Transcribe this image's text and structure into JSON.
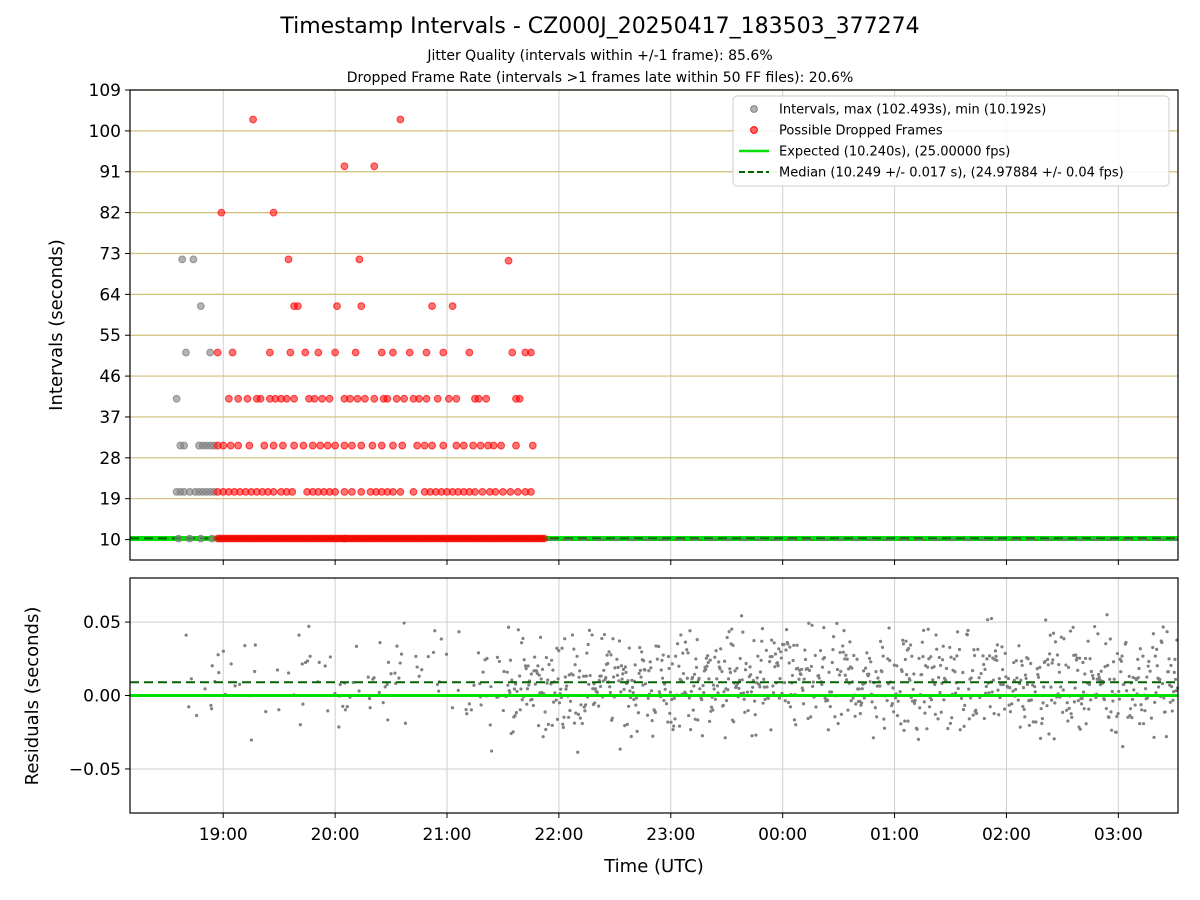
{
  "header": {
    "title": "Timestamp Intervals - CZ000J_20250417_183503_377274",
    "subtitle_jitter": "Jitter Quality (intervals within +/-1 frame): 85.6%",
    "subtitle_dropped": "Dropped Frame Rate (intervals >1 frames late within 50 FF files): 20.6%"
  },
  "colors": {
    "interval_gray": "#808080",
    "dropped_red": "#ff0000",
    "expected_green": "#00e000",
    "median_darkgreen": "#006400",
    "hline_gold": "#d2be78",
    "grid": "#cfcfcf"
  },
  "chart_data": [
    {
      "type": "scatter",
      "title": "Timestamp Intervals - CZ000J_20250417_183503_377274",
      "xlabel": "",
      "ylabel": "Intervals (seconds)",
      "x_is_time_utc": true,
      "xlim": [
        "18:10",
        "03:32"
      ],
      "ylim": [
        5.5,
        109
      ],
      "yticks": [
        10,
        19,
        28,
        37,
        46,
        55,
        64,
        73,
        82,
        91,
        100,
        109
      ],
      "xticks": [
        "19:00",
        "20:00",
        "21:00",
        "22:00",
        "23:00",
        "00:00",
        "01:00",
        "02:00",
        "03:00"
      ],
      "grid": true,
      "legend_position": "top-right",
      "legend": [
        "Intervals, max (102.493s), min (10.192s)",
        "Possible Dropped Frames",
        "Expected (10.240s), (25.00000 fps)",
        "Median (10.249 +/- 0.017 s), (24.97884 +/- 0.04 fps)"
      ],
      "reference_lines": {
        "expected": 10.24,
        "median": 10.249
      },
      "series": [
        {
          "name": "Intervals, max (102.493s), min (10.192s)",
          "points": [
            [
              "18:35",
              20.5
            ],
            [
              "18:37",
              20.5
            ],
            [
              "18:39",
              20.5
            ],
            [
              "18:42",
              20.5
            ],
            [
              "18:45",
              20.5
            ],
            [
              "18:47",
              20.5
            ],
            [
              "18:49",
              20.5
            ],
            [
              "18:51",
              20.5
            ],
            [
              "18:53",
              20.5
            ],
            [
              "18:55",
              20.5
            ],
            [
              "18:37",
              30.7
            ],
            [
              "18:39",
              30.7
            ],
            [
              "18:47",
              30.7
            ],
            [
              "18:49",
              30.7
            ],
            [
              "18:51",
              30.7
            ],
            [
              "18:53",
              30.7
            ],
            [
              "18:55",
              30.7
            ],
            [
              "18:35",
              41.0
            ],
            [
              "18:40",
              51.2
            ],
            [
              "18:53",
              51.2
            ],
            [
              "18:48",
              61.4
            ],
            [
              "18:38",
              71.7
            ],
            [
              "18:44",
              71.7
            ],
            [
              "18:36",
              10.2
            ],
            [
              "18:42",
              10.2
            ],
            [
              "18:48",
              10.2
            ],
            [
              "18:54",
              10.2
            ],
            [
              "20:05",
              10.2
            ]
          ]
        },
        {
          "name": "Possible Dropped Frames",
          "points": [
            [
              "19:16",
              102.5
            ],
            [
              "20:35",
              102.5
            ],
            [
              "20:05",
              92.2
            ],
            [
              "20:21",
              92.2
            ],
            [
              "18:59",
              82.0
            ],
            [
              "19:27",
              82.0
            ],
            [
              "19:35",
              71.7
            ],
            [
              "20:13",
              71.7
            ],
            [
              "21:33",
              71.4
            ],
            [
              "19:38",
              61.4
            ],
            [
              "19:40",
              61.4
            ],
            [
              "20:01",
              61.4
            ],
            [
              "20:14",
              61.4
            ],
            [
              "20:52",
              61.4
            ],
            [
              "21:03",
              61.4
            ],
            [
              "18:57",
              51.2
            ],
            [
              "19:05",
              51.2
            ],
            [
              "19:25",
              51.2
            ],
            [
              "19:36",
              51.2
            ],
            [
              "19:44",
              51.2
            ],
            [
              "19:51",
              51.2
            ],
            [
              "20:00",
              51.2
            ],
            [
              "20:11",
              51.2
            ],
            [
              "20:25",
              51.2
            ],
            [
              "20:31",
              51.2
            ],
            [
              "20:40",
              51.2
            ],
            [
              "20:49",
              51.2
            ],
            [
              "20:58",
              51.2
            ],
            [
              "21:12",
              51.2
            ],
            [
              "21:35",
              51.2
            ],
            [
              "21:42",
              51.2
            ],
            [
              "21:45",
              51.2
            ],
            [
              "19:03",
              41.0
            ],
            [
              "19:08",
              41.0
            ],
            [
              "19:13",
              41.0
            ],
            [
              "19:18",
              41.0
            ],
            [
              "19:20",
              41.0
            ],
            [
              "19:25",
              41.0
            ],
            [
              "19:28",
              41.0
            ],
            [
              "19:31",
              41.0
            ],
            [
              "19:34",
              41.0
            ],
            [
              "19:38",
              41.0
            ],
            [
              "19:46",
              41.0
            ],
            [
              "19:49",
              41.0
            ],
            [
              "19:53",
              41.0
            ],
            [
              "19:57",
              41.0
            ],
            [
              "20:05",
              41.0
            ],
            [
              "20:08",
              41.0
            ],
            [
              "20:12",
              41.0
            ],
            [
              "20:16",
              41.0
            ],
            [
              "20:21",
              41.0
            ],
            [
              "20:26",
              41.0
            ],
            [
              "20:28",
              41.0
            ],
            [
              "20:33",
              41.0
            ],
            [
              "20:37",
              41.0
            ],
            [
              "20:42",
              41.0
            ],
            [
              "20:45",
              41.0
            ],
            [
              "20:49",
              41.0
            ],
            [
              "20:55",
              41.0
            ],
            [
              "21:01",
              41.0
            ],
            [
              "21:05",
              41.0
            ],
            [
              "21:15",
              41.0
            ],
            [
              "21:17",
              41.0
            ],
            [
              "21:21",
              41.0
            ],
            [
              "21:37",
              41.0
            ],
            [
              "21:39",
              41.0
            ],
            [
              "18:57",
              30.7
            ],
            [
              "19:00",
              30.7
            ],
            [
              "19:04",
              30.7
            ],
            [
              "19:08",
              30.7
            ],
            [
              "19:14",
              30.7
            ],
            [
              "19:22",
              30.7
            ],
            [
              "19:27",
              30.7
            ],
            [
              "19:32",
              30.7
            ],
            [
              "19:38",
              30.7
            ],
            [
              "19:43",
              30.7
            ],
            [
              "19:48",
              30.7
            ],
            [
              "19:52",
              30.7
            ],
            [
              "19:56",
              30.7
            ],
            [
              "20:00",
              30.7
            ],
            [
              "20:05",
              30.7
            ],
            [
              "20:09",
              30.7
            ],
            [
              "20:14",
              30.7
            ],
            [
              "20:20",
              30.7
            ],
            [
              "20:25",
              30.7
            ],
            [
              "20:31",
              30.7
            ],
            [
              "20:36",
              30.7
            ],
            [
              "20:44",
              30.7
            ],
            [
              "20:48",
              30.7
            ],
            [
              "20:52",
              30.7
            ],
            [
              "20:58",
              30.7
            ],
            [
              "21:05",
              30.7
            ],
            [
              "21:09",
              30.7
            ],
            [
              "21:14",
              30.7
            ],
            [
              "21:18",
              30.7
            ],
            [
              "21:22",
              30.7
            ],
            [
              "21:25",
              30.7
            ],
            [
              "21:29",
              30.7
            ],
            [
              "21:37",
              30.7
            ],
            [
              "21:46",
              30.7
            ],
            [
              "18:57",
              20.5
            ],
            [
              "19:00",
              20.5
            ],
            [
              "19:03",
              20.5
            ],
            [
              "19:06",
              20.5
            ],
            [
              "19:09",
              20.5
            ],
            [
              "19:12",
              20.5
            ],
            [
              "19:15",
              20.5
            ],
            [
              "19:18",
              20.5
            ],
            [
              "19:21",
              20.5
            ],
            [
              "19:24",
              20.5
            ],
            [
              "19:27",
              20.5
            ],
            [
              "19:31",
              20.5
            ],
            [
              "19:34",
              20.5
            ],
            [
              "19:37",
              20.5
            ],
            [
              "19:45",
              20.5
            ],
            [
              "19:48",
              20.5
            ],
            [
              "19:51",
              20.5
            ],
            [
              "19:54",
              20.5
            ],
            [
              "19:57",
              20.5
            ],
            [
              "20:00",
              20.5
            ],
            [
              "20:05",
              20.5
            ],
            [
              "20:09",
              20.5
            ],
            [
              "20:14",
              20.5
            ],
            [
              "20:19",
              20.5
            ],
            [
              "20:22",
              20.5
            ],
            [
              "20:25",
              20.5
            ],
            [
              "20:28",
              20.5
            ],
            [
              "20:31",
              20.5
            ],
            [
              "20:35",
              20.5
            ],
            [
              "20:42",
              20.5
            ],
            [
              "20:48",
              20.5
            ],
            [
              "20:51",
              20.5
            ],
            [
              "20:54",
              20.5
            ],
            [
              "20:57",
              20.5
            ],
            [
              "21:00",
              20.5
            ],
            [
              "21:03",
              20.5
            ],
            [
              "21:06",
              20.5
            ],
            [
              "21:09",
              20.5
            ],
            [
              "21:12",
              20.5
            ],
            [
              "21:15",
              20.5
            ],
            [
              "21:19",
              20.5
            ],
            [
              "21:23",
              20.5
            ],
            [
              "21:26",
              20.5
            ],
            [
              "21:30",
              20.5
            ],
            [
              "21:34",
              20.5
            ],
            [
              "21:38",
              20.5
            ],
            [
              "21:42",
              20.5
            ],
            [
              "21:45",
              20.5
            ]
          ]
        }
      ],
      "dense_baseline_band": {
        "series": "Possible Dropped Frames",
        "from": "18:57",
        "to": "21:53",
        "value": 10.24
      }
    },
    {
      "type": "scatter",
      "title": "",
      "xlabel": "Time (UTC)",
      "ylabel": "Residuals (seconds)",
      "xlim": [
        "18:10",
        "03:32"
      ],
      "ylim": [
        -0.08,
        0.08
      ],
      "yticks": [
        -0.05,
        0.0,
        0.05
      ],
      "ytick_labels": [
        "−0.05",
        "0.00",
        "0.05"
      ],
      "xticks": [
        "19:00",
        "20:00",
        "21:00",
        "22:00",
        "23:00",
        "00:00",
        "01:00",
        "02:00",
        "03:00"
      ],
      "grid": true,
      "reference_lines": {
        "expected": 0.0,
        "median": 0.009
      },
      "series": [
        {
          "name": "",
          "summary": {
            "from": "18:38",
            "to": "03:32",
            "min": -0.048,
            "max": 0.055,
            "typical_range": [
              -0.03,
              0.045
            ],
            "center": 0.009,
            "sparse_until": "21:30"
          }
        }
      ]
    }
  ]
}
